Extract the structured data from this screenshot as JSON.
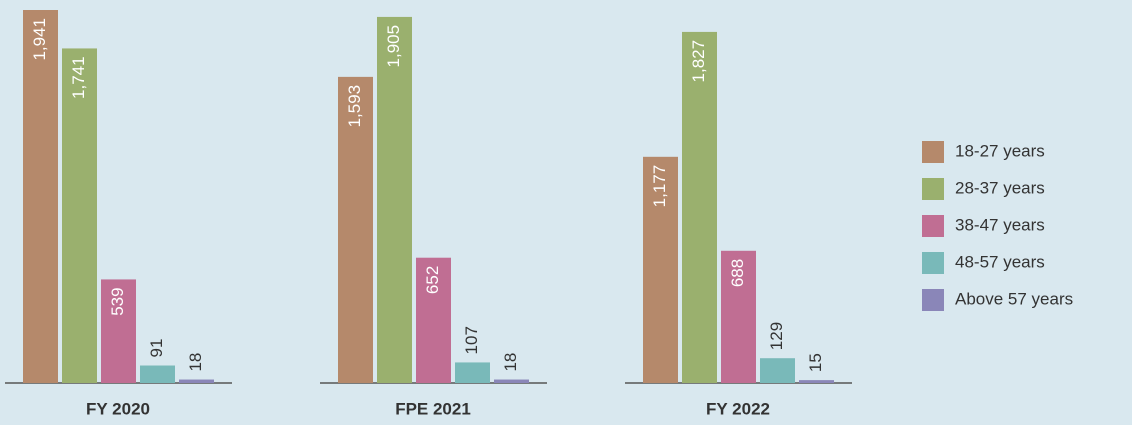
{
  "chart_data": {
    "type": "bar",
    "categories": [
      "FY 2020",
      "FPE 2021",
      "FY 2022"
    ],
    "series": [
      {
        "name": "18-27 years",
        "color": "#b5896b",
        "values": [
          1941,
          1593,
          1177
        ],
        "value_labels": [
          "1,941",
          "1,593",
          "1,177"
        ]
      },
      {
        "name": "28-37 years",
        "color": "#9ab06e",
        "values": [
          1741,
          1905,
          1827
        ],
        "value_labels": [
          "1,741",
          "1,905",
          "1,827"
        ]
      },
      {
        "name": "38-47 years",
        "color": "#c06e93",
        "values": [
          539,
          652,
          688
        ]
      },
      {
        "name": "48-57 years",
        "color": "#79b9b9",
        "values": [
          91,
          107,
          129
        ]
      },
      {
        "name": "Above 57 years",
        "color": "#8a86b8",
        "values": [
          18,
          18,
          15
        ]
      }
    ],
    "legend": "right"
  }
}
